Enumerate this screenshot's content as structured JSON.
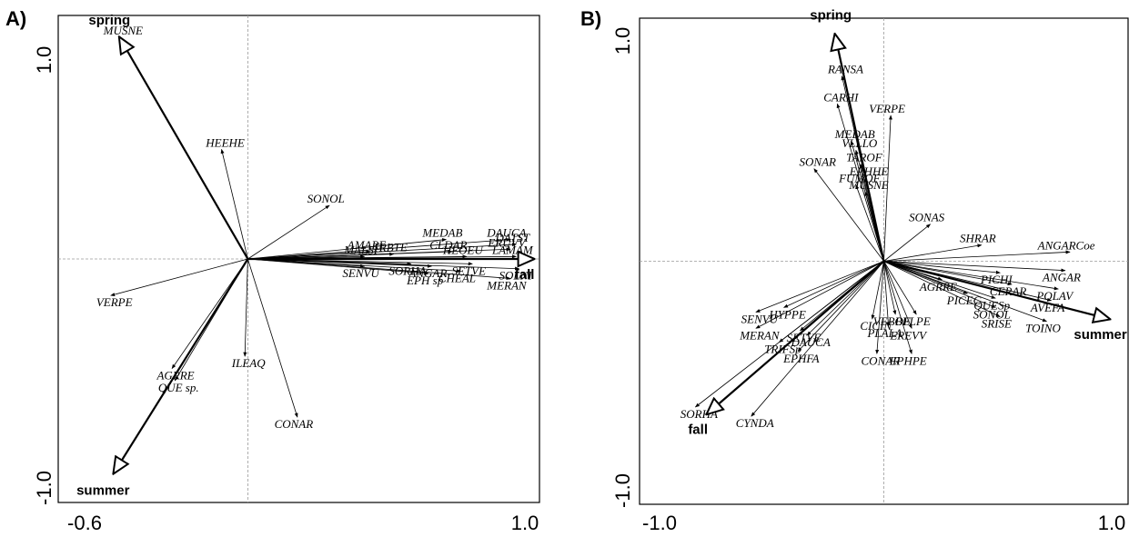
{
  "chart_data": [
    {
      "type": "scatter",
      "panel_label": "A)",
      "x_ticks": [
        "-0.6",
        "1.0"
      ],
      "y_ticks": [
        "1.0",
        "-1.0"
      ],
      "environmental_vectors": [
        {
          "label": "spring",
          "x": -0.44,
          "y": 0.91
        },
        {
          "label": "summer",
          "x": -0.46,
          "y": -0.88
        },
        {
          "label": "fall",
          "x": 0.98,
          "y": 0.0
        }
      ],
      "species": [
        {
          "label": "MUSNE",
          "x": -0.44,
          "y": 0.91
        },
        {
          "label": "HEEHE",
          "x": -0.09,
          "y": 0.45
        },
        {
          "label": "SONOL",
          "x": 0.28,
          "y": 0.22
        },
        {
          "label": "AMARE",
          "x": 0.42,
          "y": 0.03
        },
        {
          "label": "TRBTE",
          "x": 0.5,
          "y": 0.02
        },
        {
          "label": "MALSI",
          "x": 0.4,
          "y": 0.01
        },
        {
          "label": "SORHA",
          "x": 0.56,
          "y": -0.02
        },
        {
          "label": "SENVU",
          "x": 0.4,
          "y": -0.03
        },
        {
          "label": "MEDAB",
          "x": 0.68,
          "y": 0.08
        },
        {
          "label": "CLDAR",
          "x": 0.7,
          "y": 0.03
        },
        {
          "label": "HEOEU",
          "x": 0.75,
          "y": 0.01
        },
        {
          "label": "ANGAR",
          "x": 0.63,
          "y": -0.03
        },
        {
          "label": "SETVE",
          "x": 0.77,
          "y": -0.02
        },
        {
          "label": "EPH sp",
          "x": 0.62,
          "y": -0.06
        },
        {
          "label": "CHEAL",
          "x": 0.73,
          "y": -0.05
        },
        {
          "label": "DAUCA",
          "x": 0.9,
          "y": 0.08
        },
        {
          "label": "DATST",
          "x": 0.92,
          "y": 0.06
        },
        {
          "label": "ERUVV",
          "x": 0.9,
          "y": 0.04
        },
        {
          "label": "LAMAM",
          "x": 0.92,
          "y": 0.01
        },
        {
          "label": "SOLNI",
          "x": 0.93,
          "y": -0.04
        },
        {
          "label": "MERAN",
          "x": 0.9,
          "y": -0.08
        },
        {
          "label": "VERPE",
          "x": -0.47,
          "y": -0.15
        },
        {
          "label": "AGRRE",
          "x": -0.26,
          "y": -0.45
        },
        {
          "label": "QUE sp.",
          "x": -0.25,
          "y": -0.5
        },
        {
          "label": "ILEAQ",
          "x": -0.01,
          "y": -0.4
        },
        {
          "label": "CONAR",
          "x": 0.17,
          "y": -0.65
        }
      ],
      "xlim": [
        -0.65,
        1.0
      ],
      "ylim": [
        -1.0,
        1.0
      ]
    },
    {
      "type": "scatter",
      "panel_label": "B)",
      "x_ticks": [
        "-1.0",
        "1.0"
      ],
      "y_ticks": [
        "1.0",
        "-1.0"
      ],
      "environmental_vectors": [
        {
          "label": "spring",
          "x": -0.21,
          "y": 0.98
        },
        {
          "label": "summer",
          "x": 0.97,
          "y": -0.25
        },
        {
          "label": "fall",
          "x": -0.76,
          "y": -0.66
        }
      ],
      "species": [
        {
          "label": "RANSA",
          "x": -0.18,
          "y": 0.8
        },
        {
          "label": "CARHI",
          "x": -0.2,
          "y": 0.68
        },
        {
          "label": "VERPE",
          "x": 0.03,
          "y": 0.63
        },
        {
          "label": "MEDAB",
          "x": -0.14,
          "y": 0.52
        },
        {
          "label": "VLLLO",
          "x": -0.12,
          "y": 0.48
        },
        {
          "label": "TAROF",
          "x": -0.1,
          "y": 0.42
        },
        {
          "label": "SONAR",
          "x": -0.3,
          "y": 0.4
        },
        {
          "label": "EPHHE",
          "x": -0.08,
          "y": 0.36
        },
        {
          "label": "FUMOF",
          "x": -0.12,
          "y": 0.33
        },
        {
          "label": "MUSNE",
          "x": -0.08,
          "y": 0.3
        },
        {
          "label": "SONAS",
          "x": 0.2,
          "y": 0.16
        },
        {
          "label": "SHRAR",
          "x": 0.42,
          "y": 0.07
        },
        {
          "label": "ANGARCoe",
          "x": 0.8,
          "y": 0.04
        },
        {
          "label": "PICHI",
          "x": 0.5,
          "y": -0.05
        },
        {
          "label": "ANGAR",
          "x": 0.78,
          "y": -0.04
        },
        {
          "label": "AGRRE",
          "x": 0.25,
          "y": -0.08
        },
        {
          "label": "CERAR",
          "x": 0.55,
          "y": -0.1
        },
        {
          "label": "POLAV",
          "x": 0.75,
          "y": -0.12
        },
        {
          "label": "PICEC",
          "x": 0.36,
          "y": -0.14
        },
        {
          "label": "QUESp",
          "x": 0.48,
          "y": -0.16
        },
        {
          "label": "AVEFA",
          "x": 0.72,
          "y": -0.17
        },
        {
          "label": "SONOL",
          "x": 0.48,
          "y": -0.2
        },
        {
          "label": "SRISE",
          "x": 0.5,
          "y": -0.24
        },
        {
          "label": "TOINO",
          "x": 0.7,
          "y": -0.26
        },
        {
          "label": "HYPPE",
          "x": -0.43,
          "y": -0.2
        },
        {
          "label": "SENVU",
          "x": -0.55,
          "y": -0.22
        },
        {
          "label": "VEBOF",
          "x": 0.05,
          "y": -0.23
        },
        {
          "label": "BELPE",
          "x": 0.14,
          "y": -0.23
        },
        {
          "label": "CICIN",
          "x": -0.05,
          "y": -0.25
        },
        {
          "label": "MERAN",
          "x": -0.55,
          "y": -0.29
        },
        {
          "label": "SETVE",
          "x": -0.36,
          "y": -0.3
        },
        {
          "label": "PLALA",
          "x": 0.02,
          "y": -0.28
        },
        {
          "label": "EREVV",
          "x": 0.12,
          "y": -0.29
        },
        {
          "label": "DAUCA",
          "x": -0.33,
          "y": -0.32
        },
        {
          "label": "TRIFSp",
          "x": -0.45,
          "y": -0.35
        },
        {
          "label": "EPHFA",
          "x": -0.37,
          "y": -0.39
        },
        {
          "label": "CONAR",
          "x": -0.03,
          "y": -0.4
        },
        {
          "label": "EPHPE",
          "x": 0.12,
          "y": -0.4
        },
        {
          "label": "SORHA",
          "x": -0.81,
          "y": -0.63
        },
        {
          "label": "CYNDA",
          "x": -0.57,
          "y": -0.67
        }
      ],
      "xlim": [
        -1.05,
        1.05
      ],
      "ylim": [
        -1.05,
        1.05
      ]
    }
  ]
}
